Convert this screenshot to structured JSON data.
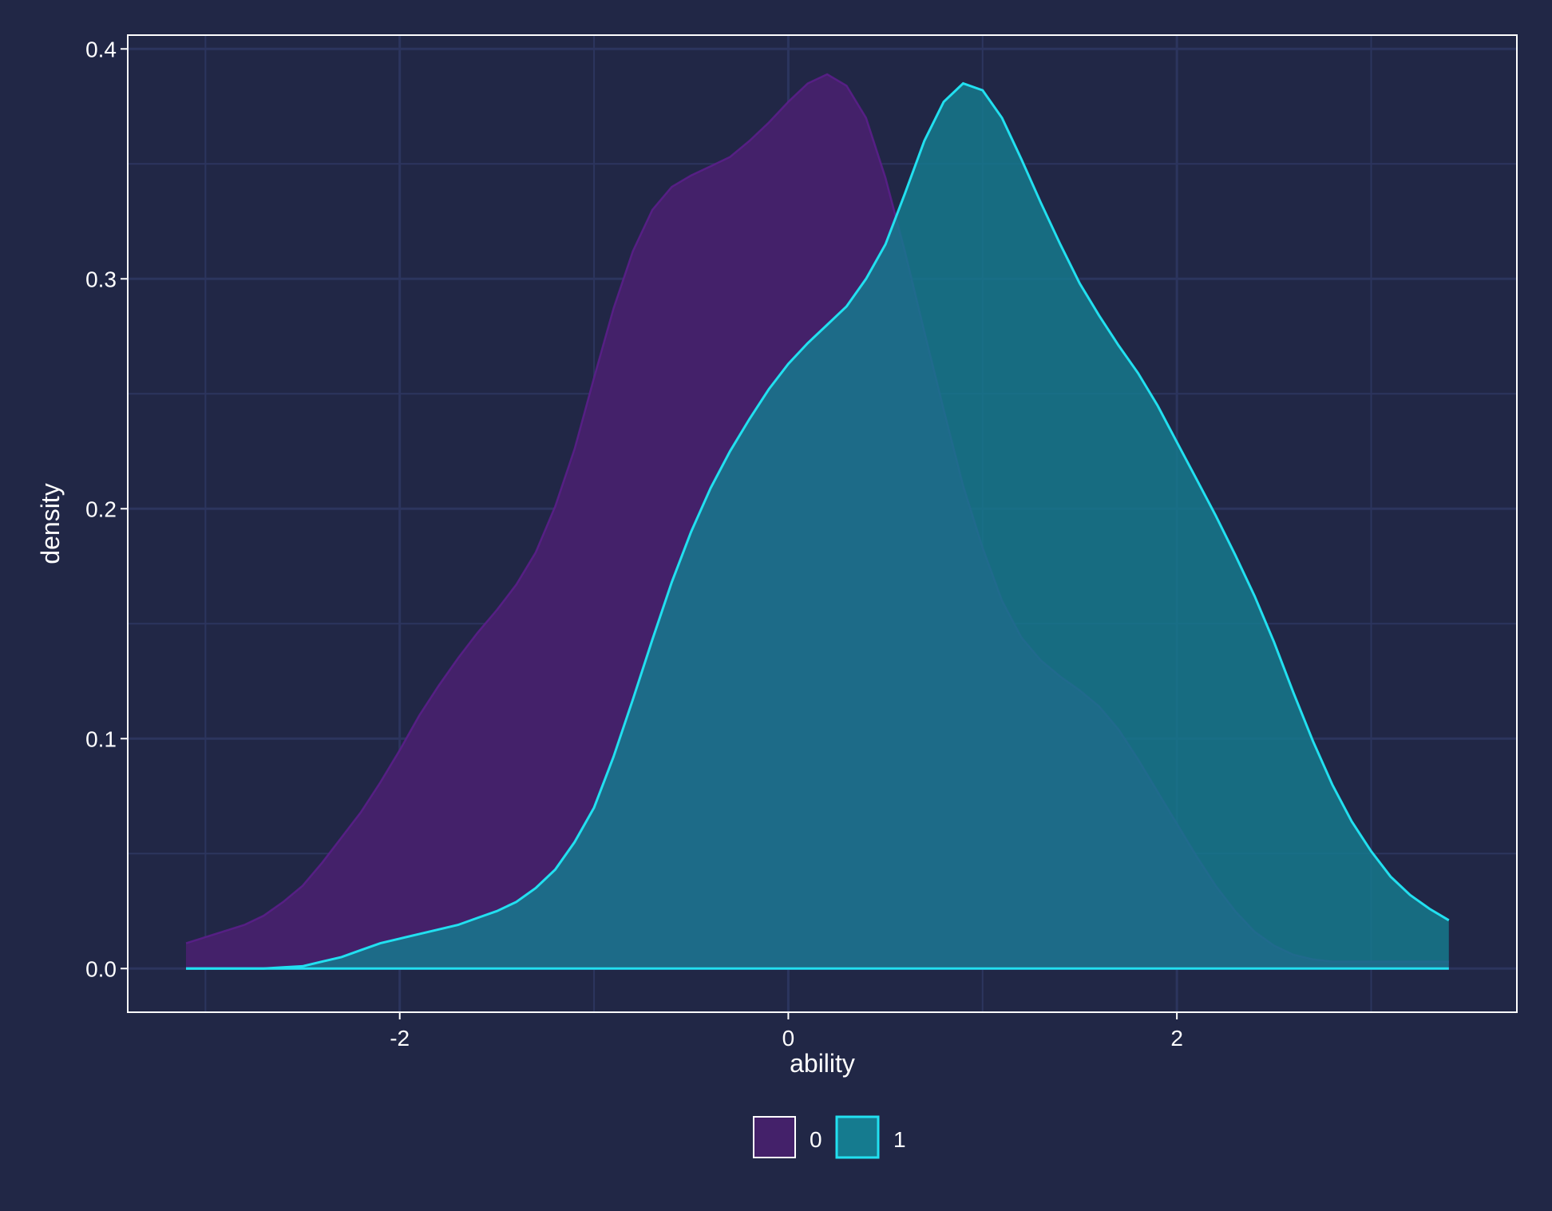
{
  "colors": {
    "background": "#212746",
    "grid": "#2c355e",
    "axis_line": "#ffffff",
    "text": "#ffffff"
  },
  "chart_data": {
    "type": "area",
    "subtype": "density",
    "title": "",
    "xlabel": "ability",
    "ylabel": "density",
    "xlim": [
      -3.4,
      3.75
    ],
    "ylim": [
      -0.019,
      0.406
    ],
    "x_ticks": [
      -2,
      0,
      2
    ],
    "y_ticks": [
      0.0,
      0.1,
      0.2,
      0.3,
      0.4
    ],
    "x_tick_labels": [
      "-2",
      "0",
      "2"
    ],
    "y_tick_labels": [
      "0.0",
      "0.1",
      "0.2",
      "0.3",
      "0.4"
    ],
    "grid": true,
    "legend": {
      "position": "bottom",
      "entries": [
        "0",
        "1"
      ]
    },
    "series": [
      {
        "name": "0",
        "fill": "#44216a",
        "stroke": "#5c1e8c",
        "points": [
          [
            -3.1,
            0.011
          ],
          [
            -2.95,
            0.015
          ],
          [
            -2.8,
            0.019
          ],
          [
            -2.7,
            0.023
          ],
          [
            -2.6,
            0.029
          ],
          [
            -2.5,
            0.036
          ],
          [
            -2.4,
            0.046
          ],
          [
            -2.3,
            0.057
          ],
          [
            -2.2,
            0.068
          ],
          [
            -2.1,
            0.081
          ],
          [
            -2.0,
            0.095
          ],
          [
            -1.9,
            0.11
          ],
          [
            -1.8,
            0.123
          ],
          [
            -1.7,
            0.135
          ],
          [
            -1.6,
            0.146
          ],
          [
            -1.5,
            0.156
          ],
          [
            -1.4,
            0.167
          ],
          [
            -1.3,
            0.181
          ],
          [
            -1.2,
            0.201
          ],
          [
            -1.1,
            0.226
          ],
          [
            -1.0,
            0.257
          ],
          [
            -0.9,
            0.287
          ],
          [
            -0.8,
            0.312
          ],
          [
            -0.7,
            0.33
          ],
          [
            -0.6,
            0.34
          ],
          [
            -0.5,
            0.345
          ],
          [
            -0.4,
            0.349
          ],
          [
            -0.3,
            0.353
          ],
          [
            -0.2,
            0.36
          ],
          [
            -0.1,
            0.368
          ],
          [
            0.0,
            0.377
          ],
          [
            0.1,
            0.385
          ],
          [
            0.2,
            0.389
          ],
          [
            0.3,
            0.384
          ],
          [
            0.4,
            0.37
          ],
          [
            0.5,
            0.344
          ],
          [
            0.6,
            0.312
          ],
          [
            0.7,
            0.277
          ],
          [
            0.8,
            0.243
          ],
          [
            0.9,
            0.21
          ],
          [
            1.0,
            0.183
          ],
          [
            1.1,
            0.16
          ],
          [
            1.2,
            0.144
          ],
          [
            1.3,
            0.134
          ],
          [
            1.4,
            0.127
          ],
          [
            1.5,
            0.121
          ],
          [
            1.6,
            0.114
          ],
          [
            1.7,
            0.104
          ],
          [
            1.8,
            0.091
          ],
          [
            1.9,
            0.077
          ],
          [
            2.0,
            0.063
          ],
          [
            2.1,
            0.049
          ],
          [
            2.2,
            0.036
          ],
          [
            2.3,
            0.025
          ],
          [
            2.4,
            0.016
          ],
          [
            2.5,
            0.01
          ],
          [
            2.6,
            0.006
          ],
          [
            2.7,
            0.004
          ],
          [
            2.8,
            0.003
          ],
          [
            2.9,
            0.003
          ],
          [
            3.0,
            0.003
          ],
          [
            3.2,
            0.003
          ],
          [
            3.4,
            0.003
          ]
        ]
      },
      {
        "name": "1",
        "fill": "#157b8f",
        "stroke": "#22e0f0",
        "points": [
          [
            -3.1,
            0.0
          ],
          [
            -2.9,
            0.0
          ],
          [
            -2.7,
            0.0
          ],
          [
            -2.6,
            0.0005
          ],
          [
            -2.5,
            0.001
          ],
          [
            -2.4,
            0.003
          ],
          [
            -2.3,
            0.005
          ],
          [
            -2.2,
            0.008
          ],
          [
            -2.1,
            0.011
          ],
          [
            -2.0,
            0.013
          ],
          [
            -1.9,
            0.015
          ],
          [
            -1.8,
            0.017
          ],
          [
            -1.7,
            0.019
          ],
          [
            -1.6,
            0.022
          ],
          [
            -1.5,
            0.025
          ],
          [
            -1.4,
            0.029
          ],
          [
            -1.3,
            0.035
          ],
          [
            -1.2,
            0.043
          ],
          [
            -1.1,
            0.055
          ],
          [
            -1.0,
            0.07
          ],
          [
            -0.9,
            0.092
          ],
          [
            -0.8,
            0.117
          ],
          [
            -0.7,
            0.143
          ],
          [
            -0.6,
            0.168
          ],
          [
            -0.5,
            0.19
          ],
          [
            -0.4,
            0.209
          ],
          [
            -0.3,
            0.225
          ],
          [
            -0.2,
            0.239
          ],
          [
            -0.1,
            0.252
          ],
          [
            0.0,
            0.263
          ],
          [
            0.1,
            0.272
          ],
          [
            0.2,
            0.28
          ],
          [
            0.3,
            0.288
          ],
          [
            0.4,
            0.3
          ],
          [
            0.5,
            0.315
          ],
          [
            0.6,
            0.337
          ],
          [
            0.7,
            0.36
          ],
          [
            0.8,
            0.377
          ],
          [
            0.9,
            0.385
          ],
          [
            1.0,
            0.382
          ],
          [
            1.1,
            0.37
          ],
          [
            1.2,
            0.352
          ],
          [
            1.3,
            0.333
          ],
          [
            1.4,
            0.315
          ],
          [
            1.5,
            0.298
          ],
          [
            1.6,
            0.284
          ],
          [
            1.7,
            0.271
          ],
          [
            1.8,
            0.259
          ],
          [
            1.9,
            0.245
          ],
          [
            2.0,
            0.229
          ],
          [
            2.1,
            0.213
          ],
          [
            2.2,
            0.197
          ],
          [
            2.3,
            0.18
          ],
          [
            2.4,
            0.162
          ],
          [
            2.5,
            0.142
          ],
          [
            2.6,
            0.12
          ],
          [
            2.7,
            0.099
          ],
          [
            2.8,
            0.08
          ],
          [
            2.9,
            0.064
          ],
          [
            3.0,
            0.051
          ],
          [
            3.1,
            0.04
          ],
          [
            3.2,
            0.032
          ],
          [
            3.3,
            0.026
          ],
          [
            3.4,
            0.021
          ]
        ]
      }
    ]
  }
}
